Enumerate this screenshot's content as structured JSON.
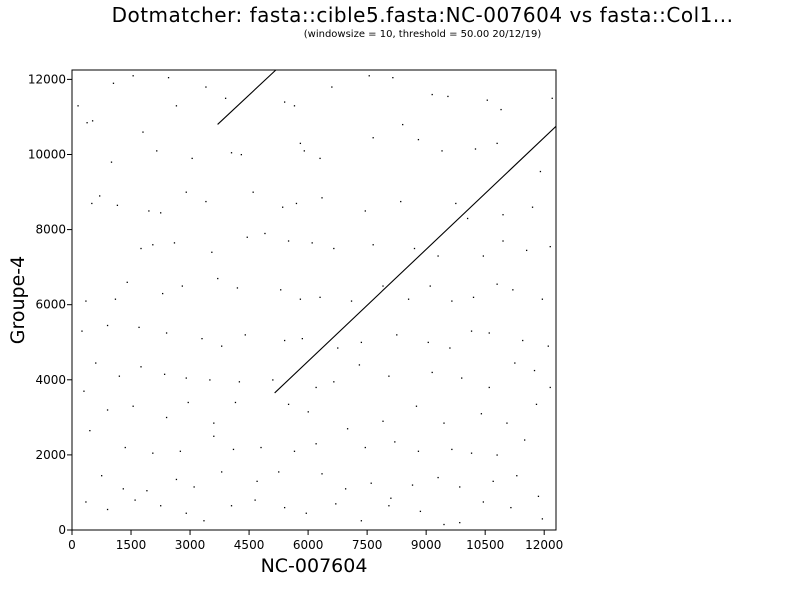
{
  "chart_data": {
    "type": "scatter",
    "title": "Dotmatcher: fasta::cible5.fasta:NC-007604 vs fasta::Col1...",
    "subtitle": "(windowsize = 10, threshold = 50.00  20/12/19)",
    "xlabel": "NC-007604",
    "ylabel": "Groupe-4",
    "xlim": [
      0,
      12300
    ],
    "ylim": [
      0,
      12250
    ],
    "xticks": [
      0,
      1500,
      3000,
      4500,
      6000,
      7500,
      9000,
      10500,
      12000
    ],
    "yticks": [
      0,
      2000,
      4000,
      6000,
      8000,
      10000,
      12000
    ],
    "grid": false,
    "series": [
      {
        "kind": "line",
        "points": [
          [
            3700,
            10800
          ],
          [
            5180,
            12250
          ]
        ]
      },
      {
        "kind": "line",
        "points": [
          [
            5150,
            3650
          ],
          [
            12300,
            10750
          ]
        ]
      },
      {
        "kind": "dots",
        "points": [
          [
            150,
            11300
          ],
          [
            380,
            10850
          ],
          [
            520,
            10900
          ],
          [
            1050,
            11900
          ],
          [
            1550,
            12100
          ],
          [
            2450,
            12050
          ],
          [
            2650,
            11300
          ],
          [
            3400,
            11800
          ],
          [
            3900,
            11500
          ],
          [
            5400,
            11400
          ],
          [
            5650,
            11300
          ],
          [
            6600,
            11800
          ],
          [
            7550,
            12100
          ],
          [
            8150,
            12050
          ],
          [
            9150,
            11600
          ],
          [
            9550,
            11550
          ],
          [
            10550,
            11450
          ],
          [
            10900,
            11200
          ],
          [
            12200,
            11500
          ],
          [
            1000,
            9800
          ],
          [
            1800,
            10600
          ],
          [
            2150,
            10100
          ],
          [
            3050,
            9900
          ],
          [
            4050,
            10050
          ],
          [
            4300,
            10000
          ],
          [
            5800,
            10300
          ],
          [
            5900,
            10100
          ],
          [
            6300,
            9900
          ],
          [
            7650,
            10450
          ],
          [
            8400,
            10800
          ],
          [
            8800,
            10400
          ],
          [
            9400,
            10100
          ],
          [
            10250,
            10150
          ],
          [
            10800,
            10300
          ],
          [
            11900,
            9550
          ],
          [
            500,
            8700
          ],
          [
            700,
            8900
          ],
          [
            1150,
            8650
          ],
          [
            1950,
            8500
          ],
          [
            2250,
            8450
          ],
          [
            2900,
            9000
          ],
          [
            3400,
            8750
          ],
          [
            4600,
            9000
          ],
          [
            5350,
            8600
          ],
          [
            5700,
            8700
          ],
          [
            6350,
            8850
          ],
          [
            7450,
            8500
          ],
          [
            8350,
            8750
          ],
          [
            9750,
            8700
          ],
          [
            10050,
            8300
          ],
          [
            10950,
            8400
          ],
          [
            11700,
            8600
          ],
          [
            1750,
            7500
          ],
          [
            2050,
            7600
          ],
          [
            2600,
            7650
          ],
          [
            3550,
            7400
          ],
          [
            4450,
            7800
          ],
          [
            4900,
            7900
          ],
          [
            5500,
            7700
          ],
          [
            6100,
            7650
          ],
          [
            6650,
            7500
          ],
          [
            7650,
            7600
          ],
          [
            8700,
            7500
          ],
          [
            9300,
            7300
          ],
          [
            10450,
            7300
          ],
          [
            10950,
            7700
          ],
          [
            11550,
            7450
          ],
          [
            12150,
            7550
          ],
          [
            350,
            6100
          ],
          [
            1100,
            6150
          ],
          [
            1400,
            6600
          ],
          [
            2300,
            6300
          ],
          [
            2800,
            6500
          ],
          [
            3700,
            6700
          ],
          [
            4200,
            6450
          ],
          [
            5300,
            6400
          ],
          [
            5800,
            6150
          ],
          [
            6300,
            6200
          ],
          [
            7100,
            6100
          ],
          [
            7900,
            6500
          ],
          [
            8550,
            6150
          ],
          [
            9100,
            6500
          ],
          [
            9650,
            6100
          ],
          [
            10200,
            6200
          ],
          [
            10800,
            6550
          ],
          [
            11200,
            6400
          ],
          [
            11950,
            6150
          ],
          [
            250,
            5300
          ],
          [
            900,
            5450
          ],
          [
            1700,
            5400
          ],
          [
            2400,
            5250
          ],
          [
            3300,
            5100
          ],
          [
            3800,
            4900
          ],
          [
            4400,
            5200
          ],
          [
            5400,
            5050
          ],
          [
            5850,
            5100
          ],
          [
            6750,
            4850
          ],
          [
            7350,
            5000
          ],
          [
            8250,
            5200
          ],
          [
            9050,
            5000
          ],
          [
            9600,
            4850
          ],
          [
            10150,
            5300
          ],
          [
            10600,
            5250
          ],
          [
            11450,
            5050
          ],
          [
            12100,
            4900
          ],
          [
            600,
            4450
          ],
          [
            1200,
            4100
          ],
          [
            1750,
            4350
          ],
          [
            2350,
            4150
          ],
          [
            2900,
            4050
          ],
          [
            3500,
            4000
          ],
          [
            4250,
            3950
          ],
          [
            5100,
            4000
          ],
          [
            6200,
            3800
          ],
          [
            6650,
            3950
          ],
          [
            7300,
            4400
          ],
          [
            8050,
            4100
          ],
          [
            9150,
            4200
          ],
          [
            9900,
            4050
          ],
          [
            10600,
            3800
          ],
          [
            11250,
            4450
          ],
          [
            11750,
            4250
          ],
          [
            12150,
            3800
          ],
          [
            300,
            3700
          ],
          [
            900,
            3200
          ],
          [
            1550,
            3300
          ],
          [
            2400,
            3000
          ],
          [
            2950,
            3400
          ],
          [
            3600,
            2850
          ],
          [
            4150,
            3400
          ],
          [
            5500,
            3350
          ],
          [
            6000,
            3150
          ],
          [
            7000,
            2700
          ],
          [
            7900,
            2900
          ],
          [
            8750,
            3300
          ],
          [
            9450,
            2850
          ],
          [
            10400,
            3100
          ],
          [
            11050,
            2850
          ],
          [
            11800,
            3350
          ],
          [
            450,
            2650
          ],
          [
            1350,
            2200
          ],
          [
            2050,
            2050
          ],
          [
            2750,
            2100
          ],
          [
            3600,
            2500
          ],
          [
            4100,
            2150
          ],
          [
            4800,
            2200
          ],
          [
            5650,
            2100
          ],
          [
            6200,
            2300
          ],
          [
            7450,
            2200
          ],
          [
            8200,
            2350
          ],
          [
            8800,
            2100
          ],
          [
            9650,
            2150
          ],
          [
            10150,
            2050
          ],
          [
            10800,
            2000
          ],
          [
            11500,
            2400
          ],
          [
            750,
            1450
          ],
          [
            1300,
            1100
          ],
          [
            1900,
            1050
          ],
          [
            2650,
            1350
          ],
          [
            3100,
            1150
          ],
          [
            3800,
            1550
          ],
          [
            4700,
            1300
          ],
          [
            5250,
            1550
          ],
          [
            6350,
            1500
          ],
          [
            6950,
            1100
          ],
          [
            7600,
            1250
          ],
          [
            8100,
            850
          ],
          [
            8650,
            1200
          ],
          [
            9300,
            1400
          ],
          [
            9850,
            1150
          ],
          [
            10700,
            1300
          ],
          [
            11300,
            1450
          ],
          [
            11850,
            900
          ],
          [
            350,
            750
          ],
          [
            900,
            550
          ],
          [
            1600,
            800
          ],
          [
            2250,
            650
          ],
          [
            2900,
            450
          ],
          [
            3350,
            250
          ],
          [
            4050,
            650
          ],
          [
            4650,
            800
          ],
          [
            5400,
            600
          ],
          [
            5950,
            450
          ],
          [
            6700,
            700
          ],
          [
            7350,
            250
          ],
          [
            8050,
            650
          ],
          [
            8850,
            500
          ],
          [
            9450,
            150
          ],
          [
            9850,
            200
          ],
          [
            10450,
            750
          ],
          [
            11150,
            600
          ],
          [
            11950,
            300
          ]
        ]
      }
    ]
  }
}
